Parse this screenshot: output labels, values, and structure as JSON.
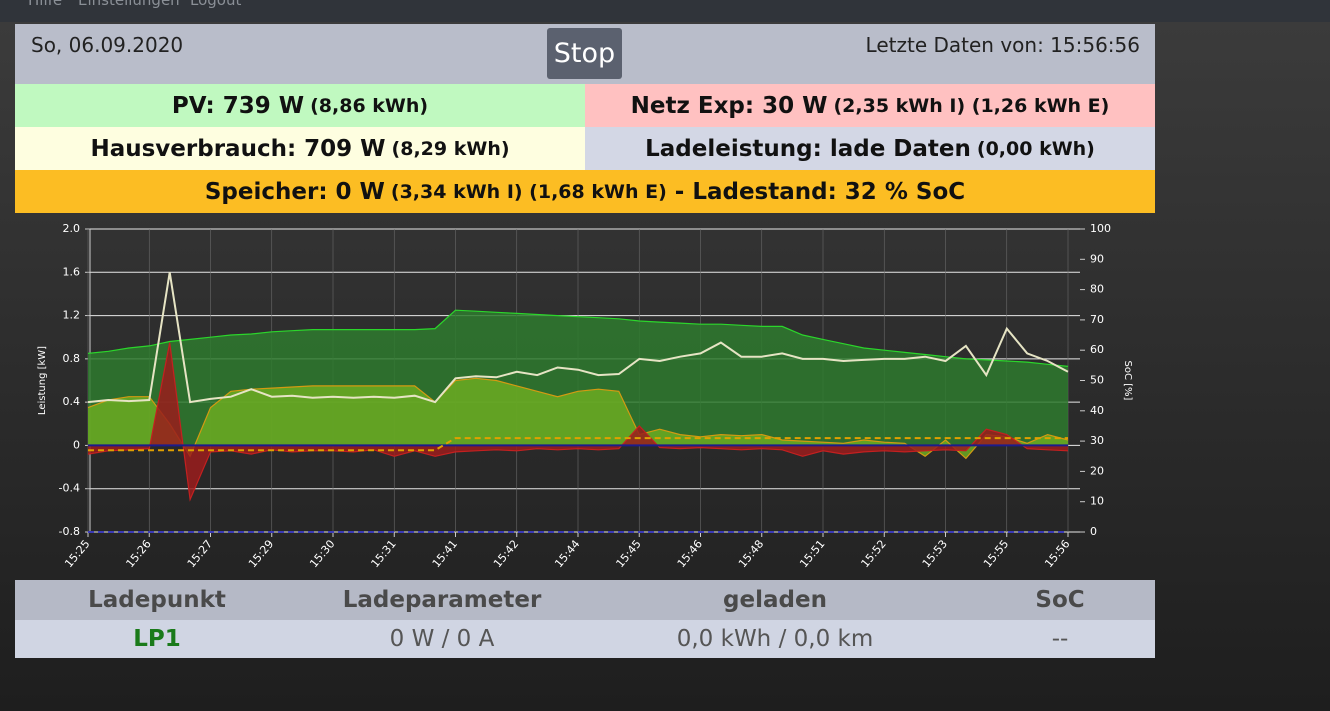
{
  "nav": {
    "items": [
      "Hilfe",
      "Einstellungen",
      "Logout"
    ]
  },
  "header": {
    "date": "So, 06.09.2020",
    "button": "Stop",
    "last_update": "Letzte Daten von: 15:56:56"
  },
  "tiles": {
    "pv": {
      "label": "PV: 739 W",
      "detail": "(8,86 kWh)"
    },
    "grid": {
      "label": "Netz Exp: 30 W",
      "detail": "(2,35 kWh I) (1,26 kWh E)"
    },
    "house": {
      "label": "Hausverbrauch: 709 W",
      "detail": "(8,29 kWh)"
    },
    "charge": {
      "label": "Ladeleistung: lade Daten",
      "detail": "(0,00 kWh)"
    },
    "storage": {
      "label": "Speicher: 0 W",
      "detail": "(3,34 kWh I) (1,68 kWh E)",
      "soc": "- Ladestand: 32 % SoC"
    }
  },
  "chart_data": {
    "type": "line",
    "ylabel": "Leistung [kW]",
    "y2label": "SoC [%]",
    "categories": [
      "15:25",
      null,
      null,
      "15:26",
      null,
      null,
      "15:27",
      null,
      null,
      "15:29",
      null,
      null,
      "15:30",
      null,
      null,
      "15:31",
      null,
      null,
      "15:41",
      null,
      null,
      "15:42",
      null,
      null,
      "15:44",
      null,
      null,
      "15:45",
      null,
      null,
      "15:46",
      null,
      null,
      "15:48",
      null,
      null,
      "15:51",
      null,
      null,
      "15:52",
      null,
      null,
      "15:53",
      null,
      null,
      "15:55",
      null,
      null,
      "15:56"
    ],
    "ylim": [
      -0.8,
      2.0
    ],
    "yticks": [
      -0.8,
      -0.4,
      0,
      0.4,
      0.8,
      1.2,
      1.6,
      {
        "value": 2,
        "label": "2.0"
      }
    ],
    "y2lim": [
      0,
      100
    ],
    "y2ticks": [
      0,
      10,
      20,
      30,
      40,
      50,
      60,
      70,
      80,
      90,
      100
    ],
    "grid": true,
    "series": [
      {
        "style": "area",
        "color": "#2bd62b",
        "fill": "#2e7a2e",
        "values": [
          0.85,
          0.87,
          0.9,
          0.92,
          0.96,
          0.98,
          1.0,
          1.02,
          1.03,
          1.05,
          1.06,
          1.07,
          1.07,
          1.07,
          1.07,
          1.07,
          1.07,
          1.08,
          1.25,
          1.24,
          1.23,
          1.22,
          1.21,
          1.2,
          1.19,
          1.18,
          1.17,
          1.15,
          1.14,
          1.13,
          1.12,
          1.12,
          1.11,
          1.1,
          1.1,
          1.02,
          0.98,
          0.94,
          0.9,
          0.88,
          0.86,
          0.84,
          0.82,
          0.8,
          0.79,
          0.78,
          0.77,
          0.75,
          0.73
        ]
      },
      {
        "style": "area",
        "color": "#d49a12",
        "fill": "#6cab22",
        "values": [
          0.35,
          0.42,
          0.45,
          0.45,
          0.2,
          -0.1,
          0.35,
          0.5,
          0.52,
          0.53,
          0.54,
          0.55,
          0.55,
          0.55,
          0.55,
          0.55,
          0.55,
          0.4,
          0.6,
          0.62,
          0.6,
          0.55,
          0.5,
          0.45,
          0.5,
          0.52,
          0.5,
          0.1,
          0.15,
          0.1,
          0.08,
          0.1,
          0.09,
          0.1,
          0.05,
          0.04,
          0.03,
          0.02,
          0.05,
          0.03,
          0.02,
          -0.1,
          0.05,
          -0.12,
          0.1,
          0.08,
          0.02,
          0.1,
          0.05
        ]
      },
      {
        "style": "area",
        "color": "#c42020",
        "fill": "#9a1c1c",
        "values": [
          -0.08,
          -0.05,
          -0.04,
          -0.03,
          0.95,
          -0.5,
          -0.06,
          -0.05,
          -0.08,
          -0.04,
          -0.06,
          -0.05,
          -0.05,
          -0.06,
          -0.04,
          -0.1,
          -0.05,
          -0.1,
          -0.06,
          -0.05,
          -0.04,
          -0.05,
          -0.03,
          -0.04,
          -0.03,
          -0.04,
          -0.03,
          0.18,
          -0.02,
          -0.03,
          -0.02,
          -0.03,
          -0.04,
          -0.03,
          -0.04,
          -0.1,
          -0.05,
          -0.08,
          -0.06,
          -0.05,
          -0.06,
          -0.05,
          -0.04,
          -0.05,
          0.15,
          0.1,
          -0.03,
          -0.04,
          -0.05
        ]
      },
      {
        "style": "line",
        "color": "#1c1c8c",
        "values": [
          0,
          0,
          0,
          0,
          0,
          0,
          0,
          0,
          0,
          0,
          0,
          0,
          0,
          0,
          0,
          0,
          0,
          0,
          0,
          0,
          0,
          0,
          0,
          0,
          0,
          0,
          0,
          0,
          0,
          0,
          0,
          0,
          0,
          0,
          0,
          0,
          0,
          0,
          0,
          0,
          0,
          0,
          0,
          0,
          0,
          0,
          0,
          0,
          0
        ]
      },
      {
        "style": "line",
        "color": "#e6e4c4",
        "values": [
          0.4,
          0.42,
          0.41,
          0.42,
          1.6,
          0.4,
          0.43,
          0.45,
          0.52,
          0.45,
          0.46,
          0.44,
          0.45,
          0.44,
          0.45,
          0.44,
          0.46,
          0.4,
          0.62,
          0.64,
          0.63,
          0.68,
          0.65,
          0.72,
          0.7,
          0.65,
          0.66,
          0.8,
          0.78,
          0.82,
          0.85,
          0.95,
          0.82,
          0.82,
          0.85,
          0.8,
          0.8,
          0.78,
          0.79,
          0.8,
          0.8,
          0.82,
          0.78,
          0.92,
          0.65,
          1.08,
          0.85,
          0.78,
          0.68
        ]
      },
      {
        "style": "dashed",
        "axis": "y2",
        "color": "#e0a000",
        "values": [
          27,
          27,
          27,
          27,
          27,
          27,
          27,
          27,
          27,
          27,
          27,
          27,
          27,
          27,
          27,
          27,
          27,
          27,
          31,
          31,
          31,
          31,
          31,
          31,
          31,
          31,
          31,
          31,
          31,
          31,
          31,
          31,
          31,
          31,
          31,
          31,
          31,
          31,
          31,
          31,
          31,
          31,
          31,
          31,
          31,
          31,
          31,
          31,
          31
        ]
      },
      {
        "style": "dashed",
        "axis": "y2",
        "color": "#3a3ab8",
        "values": [
          0,
          0,
          0,
          0,
          0,
          0,
          0,
          0,
          0,
          0,
          0,
          0,
          0,
          0,
          0,
          0,
          0,
          0,
          0,
          0,
          0,
          0,
          0,
          0,
          0,
          0,
          0,
          0,
          0,
          0,
          0,
          0,
          0,
          0,
          0,
          0,
          0,
          0,
          0,
          0,
          0,
          0,
          0,
          0,
          0,
          0,
          0,
          0,
          0
        ]
      }
    ]
  },
  "table": {
    "headers": [
      "Ladepunkt",
      "Ladeparameter",
      "geladen",
      "SoC"
    ],
    "rows": [
      [
        "LP1",
        "0 W / 0 A",
        "0,0 kWh / 0,0 km",
        "--"
      ]
    ]
  }
}
